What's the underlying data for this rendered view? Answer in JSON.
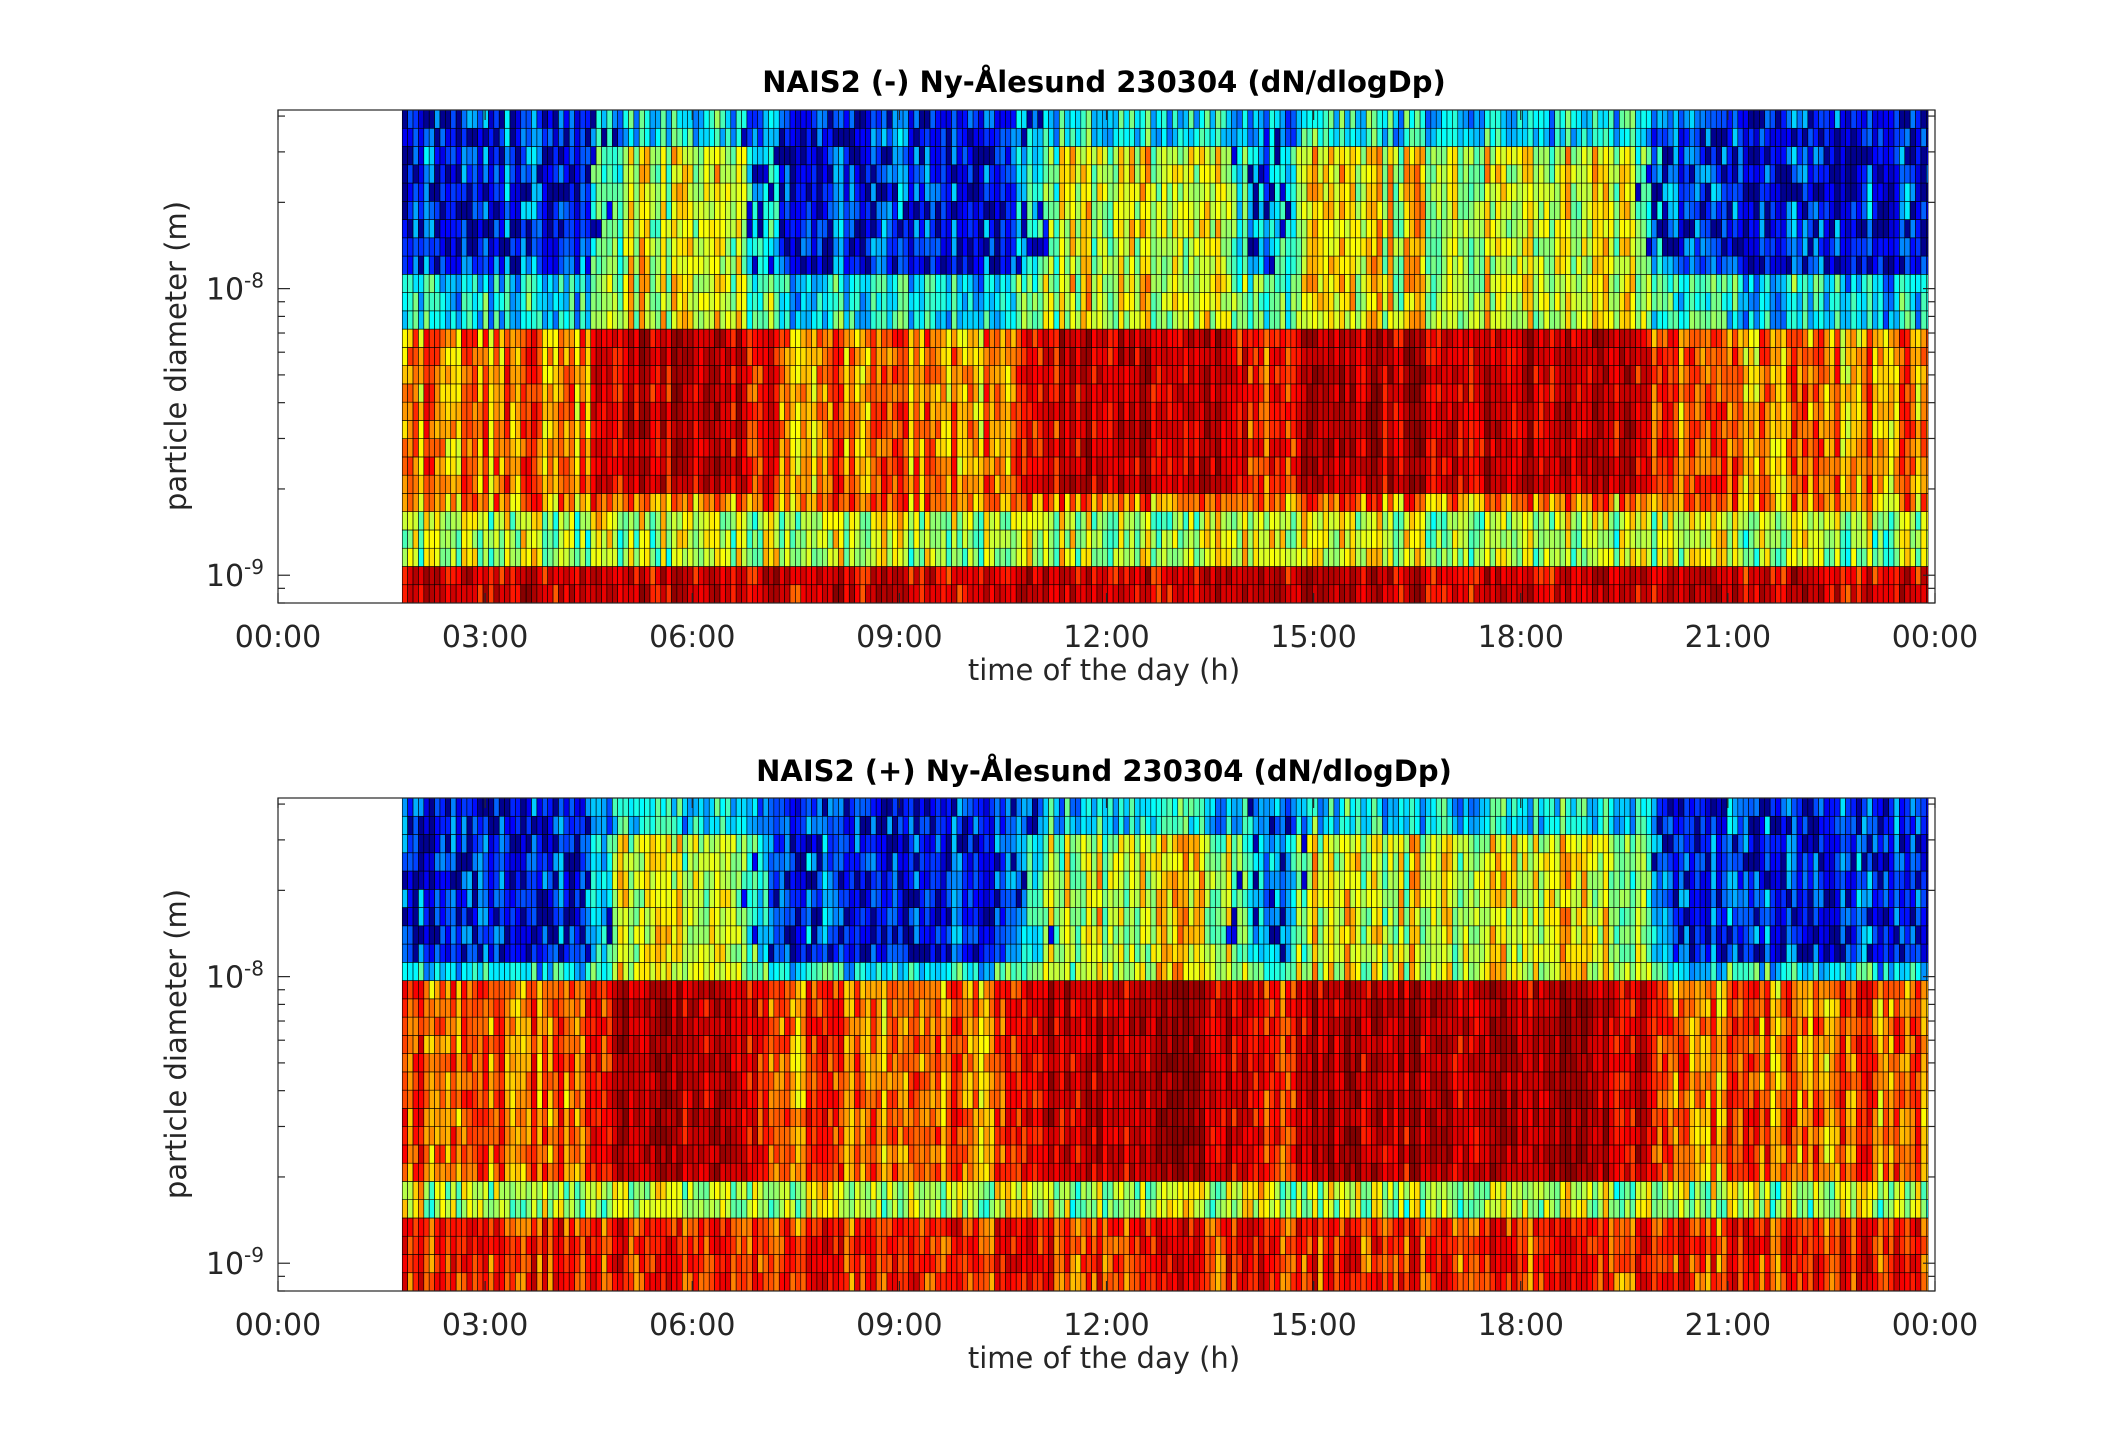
{
  "colors": {
    "colormap": "jet",
    "colormap_stops": [
      "#00008f",
      "#0000ff",
      "#00ffff",
      "#ffff00",
      "#ff0000",
      "#800000"
    ],
    "cell_edge": "#000000",
    "frame": "#262626",
    "background": "#ffffff"
  },
  "chart_data": [
    {
      "type": "heatmap",
      "title": "NAIS2 (-) Ny-Ålesund 230304 (dN/dlogDp)",
      "xlabel": "time of the day (h)",
      "ylabel": "particle diameter (m)",
      "x_ticks": [
        "00:00",
        "03:00",
        "06:00",
        "09:00",
        "12:00",
        "15:00",
        "18:00",
        "21:00",
        "00:00"
      ],
      "x_tick_hours": [
        0,
        3,
        6,
        9,
        12,
        15,
        18,
        21,
        24
      ],
      "xlim_hours": [
        0,
        24
      ],
      "y_scale": "log",
      "y_ticks": [
        {
          "base": "10",
          "exp": "-9"
        },
        {
          "base": "10",
          "exp": "-8"
        }
      ],
      "y_tick_values": [
        1e-09,
        1e-08
      ],
      "ylim": [
        8e-10,
        4.2e-08
      ],
      "data_start_hour": 1.8,
      "data_end_hour": 23.9,
      "bands": [
        {
          "dp_range": [
            8e-10,
            1.1e-09
          ],
          "level": 0.86
        },
        {
          "dp_range": [
            1.1e-09,
            1.6e-09
          ],
          "level": 0.55
        },
        {
          "dp_range": [
            1.6e-09,
            7e-09
          ],
          "level": 0.7
        },
        {
          "dp_range": [
            7e-09,
            4.2e-08
          ],
          "level": 0.4
        }
      ],
      "activity_periods_hours": [
        [
          5.1,
          6.6
        ],
        [
          11.4,
          13.6
        ],
        [
          15.0,
          19.5
        ]
      ],
      "level_scale": "relative, 0 = dark blue to 1 = dark red"
    },
    {
      "type": "heatmap",
      "title": "NAIS2 (+) Ny-Ålesund 230304 (dN/dlogDp)",
      "xlabel": "time of the day (h)",
      "ylabel": "particle diameter (m)",
      "x_ticks": [
        "00:00",
        "03:00",
        "06:00",
        "09:00",
        "12:00",
        "15:00",
        "18:00",
        "21:00",
        "00:00"
      ],
      "x_tick_hours": [
        0,
        3,
        6,
        9,
        12,
        15,
        18,
        21,
        24
      ],
      "xlim_hours": [
        0,
        24
      ],
      "y_scale": "log",
      "y_ticks": [
        {
          "base": "10",
          "exp": "-9"
        },
        {
          "base": "10",
          "exp": "-8"
        }
      ],
      "y_tick_values": [
        1e-09,
        1e-08
      ],
      "ylim": [
        8e-10,
        4.2e-08
      ],
      "data_start_hour": 1.8,
      "data_end_hour": 23.9,
      "bands": [
        {
          "dp_range": [
            8e-10,
            1.4e-09
          ],
          "level": 0.78
        },
        {
          "dp_range": [
            1.4e-09,
            2e-09
          ],
          "level": 0.55
        },
        {
          "dp_range": [
            2e-09,
            1e-08
          ],
          "level": 0.72
        },
        {
          "dp_range": [
            1e-08,
            4.2e-08
          ],
          "level": 0.4
        }
      ],
      "activity_periods_hours": [
        [
          5.1,
          6.6
        ],
        [
          11.4,
          13.6
        ],
        [
          15.0,
          19.5
        ]
      ],
      "level_scale": "relative, 0 = dark blue to 1 = dark red"
    }
  ]
}
